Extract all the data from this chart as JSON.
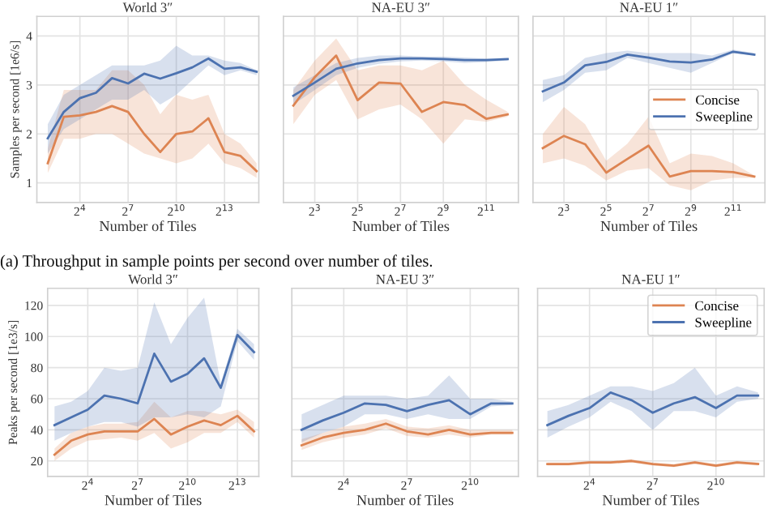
{
  "chart_data": [
    {
      "type": "line",
      "title": "World 3″",
      "xlabel": "Number of Tiles",
      "ylabel": "Samples per second [1e6/s]",
      "log": "x",
      "grid": true,
      "legend": false,
      "annotations": [
        "(a) Throughput in sample points per second over number of tiles."
      ],
      "xlim": [
        2.5,
        36000
      ],
      "xticks": [
        {
          "value": 16,
          "label": "2$^{4}$"
        },
        {
          "value": 128,
          "label": "2$^{7}$"
        },
        {
          "value": 1024,
          "label": "2$^{10}$"
        },
        {
          "value": 8192,
          "label": "2$^{13}$"
        }
      ],
      "ylim": [
        0.6,
        4.4
      ],
      "yticks": [
        1,
        2,
        3,
        4
      ],
      "x": [
        4,
        8,
        16,
        32,
        64,
        128,
        256,
        512,
        1024,
        2048,
        4096,
        8192,
        16384,
        32768
      ],
      "series": [
        {
          "color": "#dd8452",
          "values": [
            1.4,
            2.35,
            2.38,
            2.45,
            2.57,
            2.45,
            2.0,
            1.63,
            2.0,
            2.05,
            2.32,
            1.63,
            1.55,
            1.24
          ],
          "lower": [
            1.2,
            1.9,
            1.9,
            2.0,
            2.0,
            1.8,
            1.6,
            1.5,
            1.4,
            1.5,
            1.8,
            1.4,
            1.3,
            1.1
          ],
          "upper": [
            1.7,
            2.9,
            2.9,
            2.9,
            3.3,
            3.3,
            3.0,
            2.4,
            2.8,
            2.7,
            2.8,
            2.0,
            1.8,
            1.4
          ]
        },
        {
          "color": "#4c72b0",
          "values": [
            1.91,
            2.45,
            2.73,
            2.84,
            3.14,
            3.03,
            3.23,
            3.13,
            3.24,
            3.36,
            3.54,
            3.33,
            3.36,
            3.27
          ],
          "lower": [
            1.6,
            2.1,
            2.3,
            2.5,
            2.7,
            2.7,
            2.9,
            2.6,
            2.8,
            3.1,
            3.4,
            3.2,
            3.3,
            3.2
          ],
          "upper": [
            2.2,
            2.8,
            3.0,
            3.2,
            3.4,
            3.4,
            3.4,
            3.5,
            3.8,
            3.6,
            3.6,
            3.5,
            3.45,
            3.3
          ]
        }
      ]
    },
    {
      "type": "line",
      "title": "NA-EU 3″",
      "xlabel": "Number of Tiles",
      "log": "x",
      "grid": true,
      "legend": false,
      "tick_labels": "x",
      "xlim": [
        2.9,
        5800
      ],
      "xticks": [
        {
          "value": 8,
          "label": "2$^{3}$"
        },
        {
          "value": 32,
          "label": "2$^{5}$"
        },
        {
          "value": 128,
          "label": "2$^{7}$"
        },
        {
          "value": 512,
          "label": "2$^{9}$"
        },
        {
          "value": 2048,
          "label": "2$^{11}$"
        }
      ],
      "ylim": [
        0.6,
        4.4
      ],
      "yticks": [
        1,
        2,
        3,
        4
      ],
      "x": [
        4,
        8,
        16,
        32,
        64,
        128,
        256,
        512,
        1024,
        2048,
        4096
      ],
      "series": [
        {
          "color": "#dd8452",
          "values": [
            2.58,
            3.16,
            3.6,
            2.69,
            3.05,
            3.03,
            2.45,
            2.65,
            2.59,
            2.31,
            2.4
          ],
          "lower": [
            2.2,
            2.8,
            3.1,
            2.3,
            2.5,
            2.6,
            2.3,
            1.8,
            2.3,
            2.25,
            2.35
          ],
          "upper": [
            2.9,
            3.5,
            3.95,
            3.3,
            3.4,
            3.4,
            3.3,
            3.5,
            3.0,
            2.7,
            2.45
          ]
        },
        {
          "color": "#4c72b0",
          "values": [
            2.78,
            3.05,
            3.33,
            3.44,
            3.51,
            3.54,
            3.54,
            3.53,
            3.51,
            3.51,
            3.53
          ],
          "lower": [
            2.6,
            2.9,
            3.2,
            3.35,
            3.43,
            3.48,
            3.5,
            3.48,
            3.45,
            3.47,
            3.5
          ],
          "upper": [
            2.95,
            3.2,
            3.45,
            3.55,
            3.6,
            3.6,
            3.58,
            3.58,
            3.56,
            3.54,
            3.55
          ]
        }
      ]
    },
    {
      "type": "line",
      "title": "NA-EU 1″",
      "xlabel": "Number of Tiles",
      "log": "x",
      "grid": true,
      "legend": "right",
      "tick_labels": "x",
      "xlim": [
        2.9,
        5800
      ],
      "xticks": [
        {
          "value": 8,
          "label": "2$^{3}$"
        },
        {
          "value": 32,
          "label": "2$^{5}$"
        },
        {
          "value": 128,
          "label": "2$^{7}$"
        },
        {
          "value": 512,
          "label": "2$^{9}$"
        },
        {
          "value": 2048,
          "label": "2$^{11}$"
        }
      ],
      "ylim": [
        0.6,
        4.4
      ],
      "yticks": [
        1,
        2,
        3,
        4
      ],
      "x": [
        4,
        8,
        16,
        32,
        64,
        128,
        256,
        512,
        1024,
        2048,
        4096
      ],
      "series": [
        {
          "name": "Concise",
          "color": "#dd8452",
          "values": [
            1.71,
            1.96,
            1.79,
            1.21,
            1.49,
            1.76,
            1.13,
            1.24,
            1.24,
            1.22,
            1.13
          ],
          "lower": [
            1.4,
            1.5,
            1.35,
            1.05,
            1.25,
            1.3,
            0.95,
            0.85,
            1.05,
            1.1,
            1.1
          ],
          "upper": [
            2.0,
            2.55,
            2.2,
            1.45,
            1.8,
            2.35,
            1.4,
            1.6,
            1.55,
            1.4,
            1.15
          ]
        },
        {
          "name": "Sweepline",
          "color": "#4c72b0",
          "values": [
            2.87,
            3.05,
            3.4,
            3.47,
            3.62,
            3.56,
            3.48,
            3.46,
            3.52,
            3.68,
            3.62
          ],
          "lower": [
            2.65,
            2.9,
            3.25,
            3.3,
            3.55,
            3.45,
            3.35,
            3.25,
            3.45,
            3.65,
            3.6
          ],
          "upper": [
            3.1,
            3.2,
            3.55,
            3.65,
            3.7,
            3.65,
            3.65,
            3.65,
            3.6,
            3.72,
            3.65
          ]
        }
      ]
    },
    {
      "type": "line",
      "title": "World 3″",
      "xlabel": "Number of Tiles",
      "ylabel": "Peaks per second [1e3/s]",
      "log": "x",
      "grid": true,
      "legend": false,
      "xlim": [
        3,
        20000
      ],
      "xticks": [
        {
          "value": 16,
          "label": "2$^{4}$"
        },
        {
          "value": 128,
          "label": "2$^{7}$"
        },
        {
          "value": 1024,
          "label": "2$^{10}$"
        },
        {
          "value": 8192,
          "label": "2$^{13}$"
        }
      ],
      "ylim": [
        10,
        131
      ],
      "yticks": [
        20,
        40,
        60,
        80,
        100,
        120
      ],
      "x": [
        4,
        8,
        16,
        32,
        64,
        128,
        256,
        512,
        1024,
        2048,
        4096,
        8192,
        16384
      ],
      "series": [
        {
          "color": "#dd8452",
          "values": [
            24,
            33,
            37,
            39,
            39,
            39,
            47,
            37,
            42,
            46,
            43,
            49,
            39
          ],
          "lower": [
            20,
            28,
            33,
            34,
            35,
            33,
            38,
            28,
            32,
            38,
            38,
            45,
            35
          ],
          "upper": [
            28,
            38,
            42,
            44,
            44,
            45,
            58,
            48,
            52,
            52,
            50,
            53,
            45
          ]
        },
        {
          "color": "#4c72b0",
          "values": [
            43,
            48,
            53,
            62,
            60,
            57,
            89,
            71,
            76,
            86,
            67,
            101,
            90
          ],
          "lower": [
            33,
            38,
            42,
            45,
            45,
            42,
            48,
            48,
            50,
            48,
            55,
            97,
            85
          ],
          "upper": [
            55,
            58,
            65,
            80,
            78,
            80,
            122,
            95,
            112,
            125,
            70,
            105,
            95
          ]
        }
      ]
    },
    {
      "type": "line",
      "title": "NA-EU 3″",
      "xlabel": "Number of Tiles",
      "log": "x",
      "grid": true,
      "legend": false,
      "tick_labels": "x",
      "xlim": [
        2.9,
        5000
      ],
      "xticks": [
        {
          "value": 16,
          "label": "2$^{4}$"
        },
        {
          "value": 128,
          "label": "2$^{7}$"
        },
        {
          "value": 1024,
          "label": "2$^{10}$"
        }
      ],
      "ylim": [
        10,
        131
      ],
      "yticks": [
        20,
        40,
        60,
        80,
        100,
        120
      ],
      "x": [
        4,
        8,
        16,
        32,
        64,
        128,
        256,
        512,
        1024,
        2048,
        4096
      ],
      "series": [
        {
          "color": "#dd8452",
          "values": [
            30,
            35,
            38,
            40,
            44,
            39,
            37,
            40,
            37,
            38,
            38
          ],
          "lower": [
            27,
            32,
            35,
            37,
            41,
            36,
            35,
            37,
            35,
            37,
            37
          ],
          "upper": [
            34,
            38,
            42,
            44,
            47,
            42,
            41,
            43,
            40,
            40,
            40
          ]
        },
        {
          "color": "#4c72b0",
          "values": [
            40,
            46,
            51,
            57,
            56,
            52,
            56,
            59,
            50,
            57,
            57
          ],
          "lower": [
            32,
            38,
            42,
            50,
            50,
            47,
            50,
            47,
            47,
            55,
            56
          ],
          "upper": [
            50,
            56,
            62,
            62,
            62,
            60,
            62,
            75,
            60,
            60,
            58
          ]
        }
      ]
    },
    {
      "type": "line",
      "title": "NA-EU 1″",
      "xlabel": "Number of Tiles",
      "log": "x",
      "grid": true,
      "legend": "top right",
      "tick_labels": "x",
      "xlim": [
        2.9,
        5000
      ],
      "xticks": [
        {
          "value": 16,
          "label": "2$^{4}$"
        },
        {
          "value": 128,
          "label": "2$^{7}$"
        },
        {
          "value": 1024,
          "label": "2$^{10}$"
        }
      ],
      "ylim": [
        10,
        131
      ],
      "yticks": [
        20,
        40,
        60,
        80,
        100,
        120
      ],
      "x": [
        4,
        8,
        16,
        32,
        64,
        128,
        256,
        512,
        1024,
        2048,
        4096
      ],
      "series": [
        {
          "name": "Concise",
          "color": "#dd8452",
          "values": [
            18,
            18,
            19,
            19,
            20,
            18,
            17,
            19,
            17,
            19,
            18
          ],
          "lower": [
            17,
            17,
            18,
            18,
            19,
            17,
            16,
            18,
            16,
            18,
            17
          ],
          "upper": [
            19,
            19,
            20,
            20,
            21,
            19,
            18,
            20,
            18,
            20,
            19
          ]
        },
        {
          "name": "Sweepline",
          "color": "#4c72b0",
          "values": [
            43,
            49,
            54,
            64,
            59,
            51,
            57,
            61,
            54,
            62,
            62
          ],
          "lower": [
            35,
            42,
            48,
            58,
            52,
            40,
            52,
            52,
            48,
            58,
            60
          ],
          "upper": [
            52,
            56,
            62,
            68,
            68,
            65,
            70,
            80,
            62,
            68,
            64
          ]
        }
      ]
    }
  ]
}
